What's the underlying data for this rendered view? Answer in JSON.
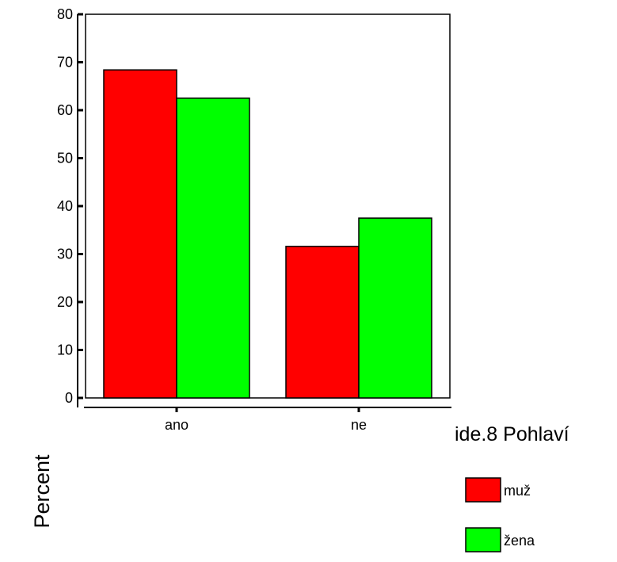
{
  "chart_data": {
    "type": "bar",
    "categories": [
      "ano",
      "ne"
    ],
    "series": [
      {
        "name": "muž",
        "values": [
          68.4,
          31.6
        ],
        "color": "#ff0000"
      },
      {
        "name": "žena",
        "values": [
          62.5,
          37.5
        ],
        "color": "#00ff00"
      }
    ],
    "title": "",
    "xlabel": "",
    "ylabel": "Percent",
    "ylim": [
      0,
      80
    ],
    "yticks": [
      "0",
      "10",
      "20",
      "30",
      "40",
      "50",
      "60",
      "70",
      "80"
    ],
    "grid": false,
    "legend": {
      "title": "ide.8 Pohlaví",
      "placement": "right"
    }
  }
}
